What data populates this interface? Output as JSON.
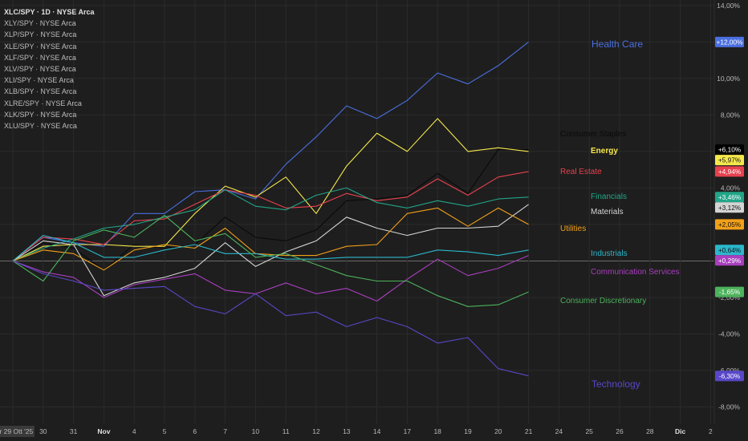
{
  "colors": {
    "background": "#1e1e1e",
    "grid": "#2b2b2b",
    "zero_line": "#6b6b6b",
    "axis_text": "#b8b8b8",
    "axis_bg": "#1e1e1e"
  },
  "legend": [
    "XLC/SPY · 1D · NYSE Arca",
    "XLY/SPY · NYSE Arca",
    "XLP/SPY · NYSE Arca",
    "XLE/SPY · NYSE Arca",
    "XLF/SPY · NYSE Arca",
    "XLV/SPY · NYSE Arca",
    "XLI/SPY · NYSE Arca",
    "XLB/SPY · NYSE Arca",
    "XLRE/SPY · NYSE Arca",
    "XLK/SPY · NYSE Arca",
    "XLU/SPY · NYSE Arca"
  ],
  "chart_data": {
    "type": "line",
    "title": "XLC/SPY · 1D · NYSE Arca",
    "ylim": [
      -8.9,
      14.3
    ],
    "y_ticks": [
      "14,00%",
      "12,00%",
      "10,00%",
      "8,00%",
      "6,00%",
      "4,00%",
      "2,00%",
      "0,00%",
      "-2,00%",
      "-4,00%",
      "-6,00%",
      "-8,00%"
    ],
    "y_tick_values": [
      14,
      12,
      10,
      8,
      6,
      4,
      2,
      0,
      -2,
      -4,
      -6,
      -8
    ],
    "x_ticks": [
      "er 29 Ott '25",
      "30",
      "31",
      "Nov",
      "4",
      "5",
      "6",
      "7",
      "10",
      "11",
      "12",
      "13",
      "14",
      "17",
      "18",
      "19",
      "20",
      "21",
      "24",
      "25",
      "26",
      "28",
      "Dic",
      "2"
    ],
    "x_tick_index": [
      0,
      1,
      2,
      3,
      4,
      5,
      6,
      7,
      8,
      9,
      10,
      11,
      12,
      13,
      14,
      15,
      16,
      17,
      18,
      19,
      20,
      21,
      22,
      23
    ],
    "series": [
      {
        "name": "Health Care",
        "color": "#4a6fe0",
        "label_value": "+12,00%",
        "values": [
          0,
          1.3,
          1.0,
          0.8,
          2.6,
          2.6,
          3.8,
          3.9,
          3.4,
          5.3,
          6.8,
          8.5,
          7.8,
          8.8,
          10.3,
          9.7,
          10.7,
          12.0
        ]
      },
      {
        "name": "Consumer Staples",
        "color": "#000000",
        "label_value": "+6,10%",
        "values": [
          0,
          1.0,
          0.7,
          -0.5,
          0.9,
          0.7,
          0.9,
          2.4,
          1.3,
          1.1,
          1.7,
          3.3,
          3.4,
          3.6,
          4.8,
          3.7,
          6.1,
          6.1
        ]
      },
      {
        "name": "Energy",
        "color": "#f5e84b",
        "label_value": "+5,97%",
        "values": [
          0,
          0.8,
          0.9,
          0.9,
          0.8,
          0.8,
          2.6,
          4.1,
          3.5,
          4.6,
          2.6,
          5.2,
          7.0,
          6.0,
          7.8,
          6.0,
          6.2,
          6.0
        ]
      },
      {
        "name": "Real Estate",
        "color": "#e8414e",
        "label_value": "+4,94%",
        "values": [
          0,
          1.3,
          1.2,
          0.9,
          2.2,
          2.3,
          3.1,
          3.9,
          3.6,
          2.9,
          3.0,
          3.7,
          3.3,
          3.5,
          4.5,
          3.6,
          4.6,
          4.9
        ]
      },
      {
        "name": "Financials",
        "color": "#22a589",
        "label_value": "+3,46%",
        "values": [
          0,
          0.7,
          1.2,
          1.8,
          2.0,
          2.4,
          2.8,
          3.9,
          3.0,
          2.8,
          3.6,
          4.0,
          3.2,
          2.9,
          3.3,
          3.0,
          3.4,
          3.5
        ]
      },
      {
        "name": "Materials",
        "color": "#d4d4d4",
        "label_value": "+3,12%",
        "values": [
          0,
          1.1,
          0.9,
          -1.9,
          -1.2,
          -0.9,
          -0.4,
          1.0,
          -0.3,
          0.5,
          1.1,
          2.4,
          1.8,
          1.4,
          1.8,
          1.8,
          1.9,
          3.1
        ]
      },
      {
        "name": "Utilities",
        "color": "#f2a019",
        "label_value": "+2,05%",
        "values": [
          0,
          0.6,
          0.4,
          -0.5,
          0.6,
          0.9,
          0.7,
          1.8,
          0.4,
          0.3,
          0.3,
          0.8,
          0.9,
          2.6,
          2.9,
          1.9,
          2.9,
          2.0
        ]
      },
      {
        "name": "Industrials",
        "color": "#2bb7cb",
        "label_value": "+0,64%",
        "values": [
          0,
          1.4,
          1.0,
          0.2,
          0.2,
          0.6,
          0.9,
          0.4,
          0.4,
          0.1,
          0.1,
          0.2,
          0.2,
          0.2,
          0.6,
          0.5,
          0.3,
          0.6
        ]
      },
      {
        "name": "Communication Services",
        "color": "#a93fbf",
        "label_value": "+0,29%",
        "values": [
          0,
          -0.6,
          -0.9,
          -2.0,
          -1.3,
          -1.0,
          -0.7,
          -1.6,
          -1.8,
          -1.2,
          -1.8,
          -1.5,
          -2.2,
          -1.0,
          0.1,
          -0.8,
          -0.4,
          0.3
        ]
      },
      {
        "name": "Consumer Discretionary",
        "color": "#4db25c",
        "label_value": "-1,65%",
        "values": [
          0,
          -1.1,
          1.1,
          1.7,
          1.3,
          2.5,
          1.1,
          1.5,
          0.2,
          0.4,
          -0.2,
          -0.8,
          -1.1,
          -1.1,
          -1.9,
          -2.5,
          -2.4,
          -1.7
        ]
      },
      {
        "name": "Technology",
        "color": "#5848c8",
        "label_value": "-6,30%",
        "values": [
          0,
          -0.7,
          -1.1,
          -1.6,
          -1.5,
          -1.4,
          -2.5,
          -2.9,
          -1.8,
          -3.0,
          -2.8,
          -3.6,
          -3.1,
          -3.6,
          -4.5,
          -4.2,
          -5.9,
          -6.3
        ]
      }
    ]
  }
}
